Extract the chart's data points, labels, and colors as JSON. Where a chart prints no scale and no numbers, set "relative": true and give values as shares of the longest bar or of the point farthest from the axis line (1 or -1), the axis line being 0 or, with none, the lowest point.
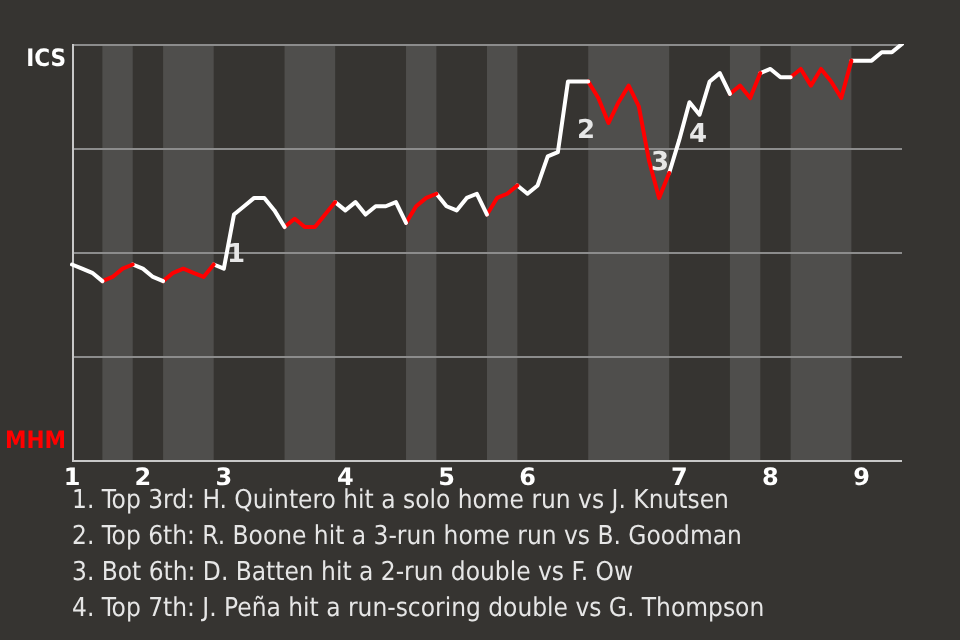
{
  "chart_data": {
    "type": "line",
    "relative": true,
    "categories": [
      "1",
      null,
      null,
      null,
      null,
      null,
      null,
      "2",
      null,
      null,
      null,
      null,
      null,
      null,
      null,
      "3",
      null,
      null,
      null,
      null,
      null,
      null,
      null,
      null,
      null,
      null,
      null,
      "4",
      null,
      null,
      null,
      null,
      null,
      null,
      null,
      null,
      null,
      "5",
      null,
      null,
      null,
      null,
      null,
      null,
      null,
      "6",
      null,
      null,
      null,
      null,
      null,
      null,
      null,
      null,
      null,
      null,
      null,
      null,
      null,
      null,
      "7",
      null,
      null,
      null,
      null,
      null,
      null,
      null,
      null,
      "8",
      null,
      null,
      null,
      null,
      null,
      null,
      null,
      null,
      "9",
      null,
      null,
      null,
      null
    ],
    "series": [
      {
        "color": "#ffffff",
        "values": [
          0.47,
          0.46,
          0.45,
          0.43,
          null,
          null,
          null,
          null,
          null,
          null,
          null,
          null,
          null,
          null,
          null,
          null,
          null,
          null,
          null,
          null,
          null,
          null,
          null,
          null,
          null,
          null,
          null,
          null,
          null,
          null,
          null,
          null,
          null,
          null,
          null,
          null,
          null,
          null,
          null,
          null,
          null,
          null,
          null,
          null,
          null,
          null,
          null,
          null,
          null,
          null,
          null,
          null,
          null,
          null,
          null,
          null,
          null,
          null,
          null,
          null,
          null,
          null,
          null,
          null,
          null,
          null,
          null,
          null,
          null,
          null,
          null,
          null,
          null,
          null,
          null,
          null,
          null,
          null,
          null,
          null,
          null,
          null,
          null
        ]
      },
      {
        "color": "#ff0000",
        "values": [
          null,
          null,
          null,
          0.43,
          0.44,
          0.46,
          0.47,
          null,
          null,
          null,
          null,
          null,
          null,
          null,
          null,
          null,
          null,
          null,
          null,
          null,
          null,
          null,
          null,
          null,
          null,
          null,
          null,
          null,
          null,
          null,
          null,
          null,
          null,
          null,
          null,
          null,
          null,
          null,
          null,
          null,
          null,
          null,
          null,
          null,
          null,
          null,
          null,
          null,
          null,
          null,
          null,
          null,
          null,
          null,
          null,
          null,
          null,
          null,
          null,
          null,
          null,
          null,
          null,
          null,
          null,
          null,
          null,
          null,
          null,
          null,
          null,
          null,
          null,
          null,
          null,
          null,
          null,
          null,
          null,
          null,
          null,
          null,
          null
        ]
      },
      {
        "color": "#ffffff",
        "values": [
          null,
          null,
          null,
          null,
          null,
          null,
          0.47,
          0.46,
          0.44,
          0.43,
          null,
          null,
          null,
          null,
          null,
          null,
          null,
          null,
          null,
          null,
          null,
          null,
          null,
          null,
          null,
          null,
          null,
          null,
          null,
          null,
          null,
          null,
          null,
          null,
          null,
          null,
          null,
          null,
          null,
          null,
          null,
          null,
          null,
          null,
          null,
          null,
          null,
          null,
          null,
          null,
          null,
          null,
          null,
          null,
          null,
          null,
          null,
          null,
          null,
          null,
          null,
          null,
          null,
          null,
          null,
          null,
          null,
          null,
          null,
          null,
          null,
          null,
          null,
          null,
          null,
          null,
          null,
          null,
          null,
          null,
          null,
          null,
          null
        ]
      },
      {
        "color": "#ff0000",
        "values": [
          null,
          null,
          null,
          null,
          null,
          null,
          null,
          null,
          null,
          0.43,
          0.45,
          0.46,
          0.45,
          0.44,
          0.47,
          null,
          null,
          null,
          null,
          null,
          null,
          null,
          null,
          null,
          null,
          null,
          null,
          null,
          null,
          null,
          null,
          null,
          null,
          null,
          null,
          null,
          null,
          null,
          null,
          null,
          null,
          null,
          null,
          null,
          null,
          null,
          null,
          null,
          null,
          null,
          null,
          null,
          null,
          null,
          null,
          null,
          null,
          null,
          null,
          null,
          null,
          null,
          null,
          null,
          null,
          null,
          null,
          null,
          null,
          null,
          null,
          null,
          null,
          null,
          null,
          null,
          null,
          null,
          null,
          null,
          null,
          null,
          null
        ]
      },
      {
        "color": "#ffffff",
        "values": [
          null,
          null,
          null,
          null,
          null,
          null,
          null,
          null,
          null,
          null,
          null,
          null,
          null,
          null,
          0.47,
          0.46,
          0.59,
          0.61,
          0.63,
          0.63,
          0.6,
          0.56,
          null,
          null,
          null,
          null,
          null,
          null,
          null,
          null,
          null,
          null,
          null,
          null,
          null,
          null,
          null,
          null,
          null,
          null,
          null,
          null,
          null,
          null,
          null,
          null,
          null,
          null,
          null,
          null,
          null,
          null,
          null,
          null,
          null,
          null,
          null,
          null,
          null,
          null,
          null,
          null,
          null,
          null,
          null,
          null,
          null,
          null,
          null,
          null,
          null,
          null,
          null,
          null,
          null,
          null,
          null,
          null,
          null,
          null,
          null,
          null,
          null
        ]
      },
      {
        "color": "#ff0000",
        "values": [
          null,
          null,
          null,
          null,
          null,
          null,
          null,
          null,
          null,
          null,
          null,
          null,
          null,
          null,
          null,
          null,
          null,
          null,
          null,
          null,
          null,
          0.56,
          0.58,
          0.56,
          0.56,
          0.59,
          0.62,
          null,
          null,
          null,
          null,
          null,
          null,
          null,
          null,
          null,
          null,
          null,
          null,
          null,
          null,
          null,
          null,
          null,
          null,
          null,
          null,
          null,
          null,
          null,
          null,
          null,
          null,
          null,
          null,
          null,
          null,
          null,
          null,
          null,
          null,
          null,
          null,
          null,
          null,
          null,
          null,
          null,
          null,
          null,
          null,
          null,
          null,
          null,
          null,
          null,
          null,
          null,
          null,
          null,
          null,
          null,
          null
        ]
      },
      {
        "color": "#ffffff",
        "values": [
          null,
          null,
          null,
          null,
          null,
          null,
          null,
          null,
          null,
          null,
          null,
          null,
          null,
          null,
          null,
          null,
          null,
          null,
          null,
          null,
          null,
          null,
          null,
          null,
          null,
          null,
          0.62,
          0.6,
          0.62,
          0.59,
          0.61,
          0.61,
          0.62,
          0.57,
          null,
          null,
          null,
          null,
          null,
          null,
          null,
          null,
          null,
          null,
          null,
          null,
          null,
          null,
          null,
          null,
          null,
          null,
          null,
          null,
          null,
          null,
          null,
          null,
          null,
          null,
          null,
          null,
          null,
          null,
          null,
          null,
          null,
          null,
          null,
          null,
          null,
          null,
          null,
          null,
          null,
          null,
          null,
          null,
          null,
          null,
          null,
          null,
          null
        ]
      },
      {
        "color": "#ff0000",
        "values": [
          null,
          null,
          null,
          null,
          null,
          null,
          null,
          null,
          null,
          null,
          null,
          null,
          null,
          null,
          null,
          null,
          null,
          null,
          null,
          null,
          null,
          null,
          null,
          null,
          null,
          null,
          null,
          null,
          null,
          null,
          null,
          null,
          null,
          0.57,
          0.61,
          0.63,
          0.64,
          null,
          null,
          null,
          null,
          null,
          null,
          null,
          null,
          null,
          null,
          null,
          null,
          null,
          null,
          null,
          null,
          null,
          null,
          null,
          null,
          null,
          null,
          null,
          null,
          null,
          null,
          null,
          null,
          null,
          null,
          null,
          null,
          null,
          null,
          null,
          null,
          null,
          null,
          null,
          null,
          null,
          null,
          null,
          null,
          null,
          null
        ]
      },
      {
        "color": "#ffffff",
        "values": [
          null,
          null,
          null,
          null,
          null,
          null,
          null,
          null,
          null,
          null,
          null,
          null,
          null,
          null,
          null,
          null,
          null,
          null,
          null,
          null,
          null,
          null,
          null,
          null,
          null,
          null,
          null,
          null,
          null,
          null,
          null,
          null,
          null,
          null,
          null,
          null,
          0.64,
          0.61,
          0.6,
          0.63,
          0.64,
          0.59,
          null,
          null,
          null,
          null,
          null,
          null,
          null,
          null,
          null,
          null,
          null,
          null,
          null,
          null,
          null,
          null,
          null,
          null,
          null,
          null,
          null,
          null,
          null,
          null,
          null,
          null,
          null,
          null,
          null,
          null,
          null,
          null,
          null,
          null,
          null,
          null,
          null,
          null,
          null,
          null,
          null
        ]
      },
      {
        "color": "#ff0000",
        "values": [
          null,
          null,
          null,
          null,
          null,
          null,
          null,
          null,
          null,
          null,
          null,
          null,
          null,
          null,
          null,
          null,
          null,
          null,
          null,
          null,
          null,
          null,
          null,
          null,
          null,
          null,
          null,
          null,
          null,
          null,
          null,
          null,
          null,
          null,
          null,
          null,
          null,
          null,
          null,
          null,
          null,
          0.59,
          0.63,
          0.64,
          0.66,
          null,
          null,
          null,
          null,
          null,
          null,
          null,
          null,
          null,
          null,
          null,
          null,
          null,
          null,
          null,
          null,
          null,
          null,
          null,
          null,
          null,
          null,
          null,
          null,
          null,
          null,
          null,
          null,
          null,
          null,
          null,
          null,
          null,
          null,
          null,
          null,
          null,
          null
        ]
      },
      {
        "color": "#ffffff",
        "values": [
          null,
          null,
          null,
          null,
          null,
          null,
          null,
          null,
          null,
          null,
          null,
          null,
          null,
          null,
          null,
          null,
          null,
          null,
          null,
          null,
          null,
          null,
          null,
          null,
          null,
          null,
          null,
          null,
          null,
          null,
          null,
          null,
          null,
          null,
          null,
          null,
          null,
          null,
          null,
          null,
          null,
          null,
          null,
          null,
          0.66,
          0.64,
          0.66,
          0.73,
          0.74,
          0.91,
          0.91,
          0.91,
          null,
          null,
          null,
          null,
          null,
          null,
          null,
          null,
          null,
          null,
          null,
          null,
          null,
          null,
          null,
          null,
          null,
          null,
          null,
          null,
          null,
          null,
          null,
          null,
          null,
          null,
          null,
          null,
          null,
          null,
          null
        ]
      },
      {
        "color": "#ff0000",
        "values": [
          null,
          null,
          null,
          null,
          null,
          null,
          null,
          null,
          null,
          null,
          null,
          null,
          null,
          null,
          null,
          null,
          null,
          null,
          null,
          null,
          null,
          null,
          null,
          null,
          null,
          null,
          null,
          null,
          null,
          null,
          null,
          null,
          null,
          null,
          null,
          null,
          null,
          null,
          null,
          null,
          null,
          null,
          null,
          null,
          null,
          null,
          null,
          null,
          null,
          null,
          null,
          0.91,
          0.87,
          0.81,
          0.86,
          0.9,
          0.85,
          0.72,
          0.63,
          0.69,
          null,
          null,
          null,
          null,
          null,
          null,
          null,
          null,
          null,
          null,
          null,
          null,
          null,
          null,
          null,
          null,
          null,
          null,
          null,
          null,
          null,
          null,
          null
        ]
      },
      {
        "color": "#ffffff",
        "values": [
          null,
          null,
          null,
          null,
          null,
          null,
          null,
          null,
          null,
          null,
          null,
          null,
          null,
          null,
          null,
          null,
          null,
          null,
          null,
          null,
          null,
          null,
          null,
          null,
          null,
          null,
          null,
          null,
          null,
          null,
          null,
          null,
          null,
          null,
          null,
          null,
          null,
          null,
          null,
          null,
          null,
          null,
          null,
          null,
          null,
          null,
          null,
          null,
          null,
          null,
          null,
          null,
          null,
          null,
          null,
          null,
          null,
          null,
          null,
          0.69,
          0.77,
          0.86,
          0.83,
          0.91,
          0.93,
          0.88,
          null,
          null,
          null,
          null,
          null,
          null,
          null,
          null,
          null,
          null,
          null,
          null,
          null,
          null,
          null,
          null,
          null
        ]
      },
      {
        "color": "#ff0000",
        "values": [
          null,
          null,
          null,
          null,
          null,
          null,
          null,
          null,
          null,
          null,
          null,
          null,
          null,
          null,
          null,
          null,
          null,
          null,
          null,
          null,
          null,
          null,
          null,
          null,
          null,
          null,
          null,
          null,
          null,
          null,
          null,
          null,
          null,
          null,
          null,
          null,
          null,
          null,
          null,
          null,
          null,
          null,
          null,
          null,
          null,
          null,
          null,
          null,
          null,
          null,
          null,
          null,
          null,
          null,
          null,
          null,
          null,
          null,
          null,
          null,
          null,
          null,
          null,
          null,
          null,
          0.88,
          0.9,
          0.87,
          0.93,
          null,
          null,
          null,
          null,
          null,
          null,
          null,
          null,
          null,
          null,
          null,
          null,
          null,
          null
        ]
      },
      {
        "color": "#ffffff",
        "values": [
          null,
          null,
          null,
          null,
          null,
          null,
          null,
          null,
          null,
          null,
          null,
          null,
          null,
          null,
          null,
          null,
          null,
          null,
          null,
          null,
          null,
          null,
          null,
          null,
          null,
          null,
          null,
          null,
          null,
          null,
          null,
          null,
          null,
          null,
          null,
          null,
          null,
          null,
          null,
          null,
          null,
          null,
          null,
          null,
          null,
          null,
          null,
          null,
          null,
          null,
          null,
          null,
          null,
          null,
          null,
          null,
          null,
          null,
          null,
          null,
          null,
          null,
          null,
          null,
          null,
          null,
          null,
          null,
          0.93,
          0.94,
          0.92,
          0.92,
          null,
          null,
          null,
          null,
          null,
          null,
          null,
          null,
          null,
          null,
          null
        ]
      },
      {
        "color": "#ff0000",
        "values": [
          null,
          null,
          null,
          null,
          null,
          null,
          null,
          null,
          null,
          null,
          null,
          null,
          null,
          null,
          null,
          null,
          null,
          null,
          null,
          null,
          null,
          null,
          null,
          null,
          null,
          null,
          null,
          null,
          null,
          null,
          null,
          null,
          null,
          null,
          null,
          null,
          null,
          null,
          null,
          null,
          null,
          null,
          null,
          null,
          null,
          null,
          null,
          null,
          null,
          null,
          null,
          null,
          null,
          null,
          null,
          null,
          null,
          null,
          null,
          null,
          null,
          null,
          null,
          null,
          null,
          null,
          null,
          null,
          null,
          null,
          null,
          0.92,
          0.94,
          0.9,
          0.94,
          0.91,
          0.87,
          0.96,
          null,
          null,
          null,
          null,
          null
        ]
      },
      {
        "color": "#ffffff",
        "values": [
          null,
          null,
          null,
          null,
          null,
          null,
          null,
          null,
          null,
          null,
          null,
          null,
          null,
          null,
          null,
          null,
          null,
          null,
          null,
          null,
          null,
          null,
          null,
          null,
          null,
          null,
          null,
          null,
          null,
          null,
          null,
          null,
          null,
          null,
          null,
          null,
          null,
          null,
          null,
          null,
          null,
          null,
          null,
          null,
          null,
          null,
          null,
          null,
          null,
          null,
          null,
          null,
          null,
          null,
          null,
          null,
          null,
          null,
          null,
          null,
          null,
          null,
          null,
          null,
          null,
          null,
          null,
          null,
          null,
          null,
          null,
          null,
          null,
          null,
          null,
          null,
          null,
          0.96,
          0.96,
          0.96,
          0.98,
          0.98,
          1.0
        ]
      }
    ],
    "grid": "y",
    "marker": "none",
    "annotations": [
      "ICS",
      "MHM",
      "1",
      "2",
      "3",
      "4",
      "1. Top 3rd: H. Quintero hit a solo home run vs J. Knutsen",
      "2. Top 6th: R. Boone hit a 3-run home run vs B. Goodman",
      "3. Bot 6th: D. Batten hit a 2-run double vs F. Ow",
      "4. Top 7th: J. Peña hit a run-scoring double vs G. Thompson"
    ]
  }
}
